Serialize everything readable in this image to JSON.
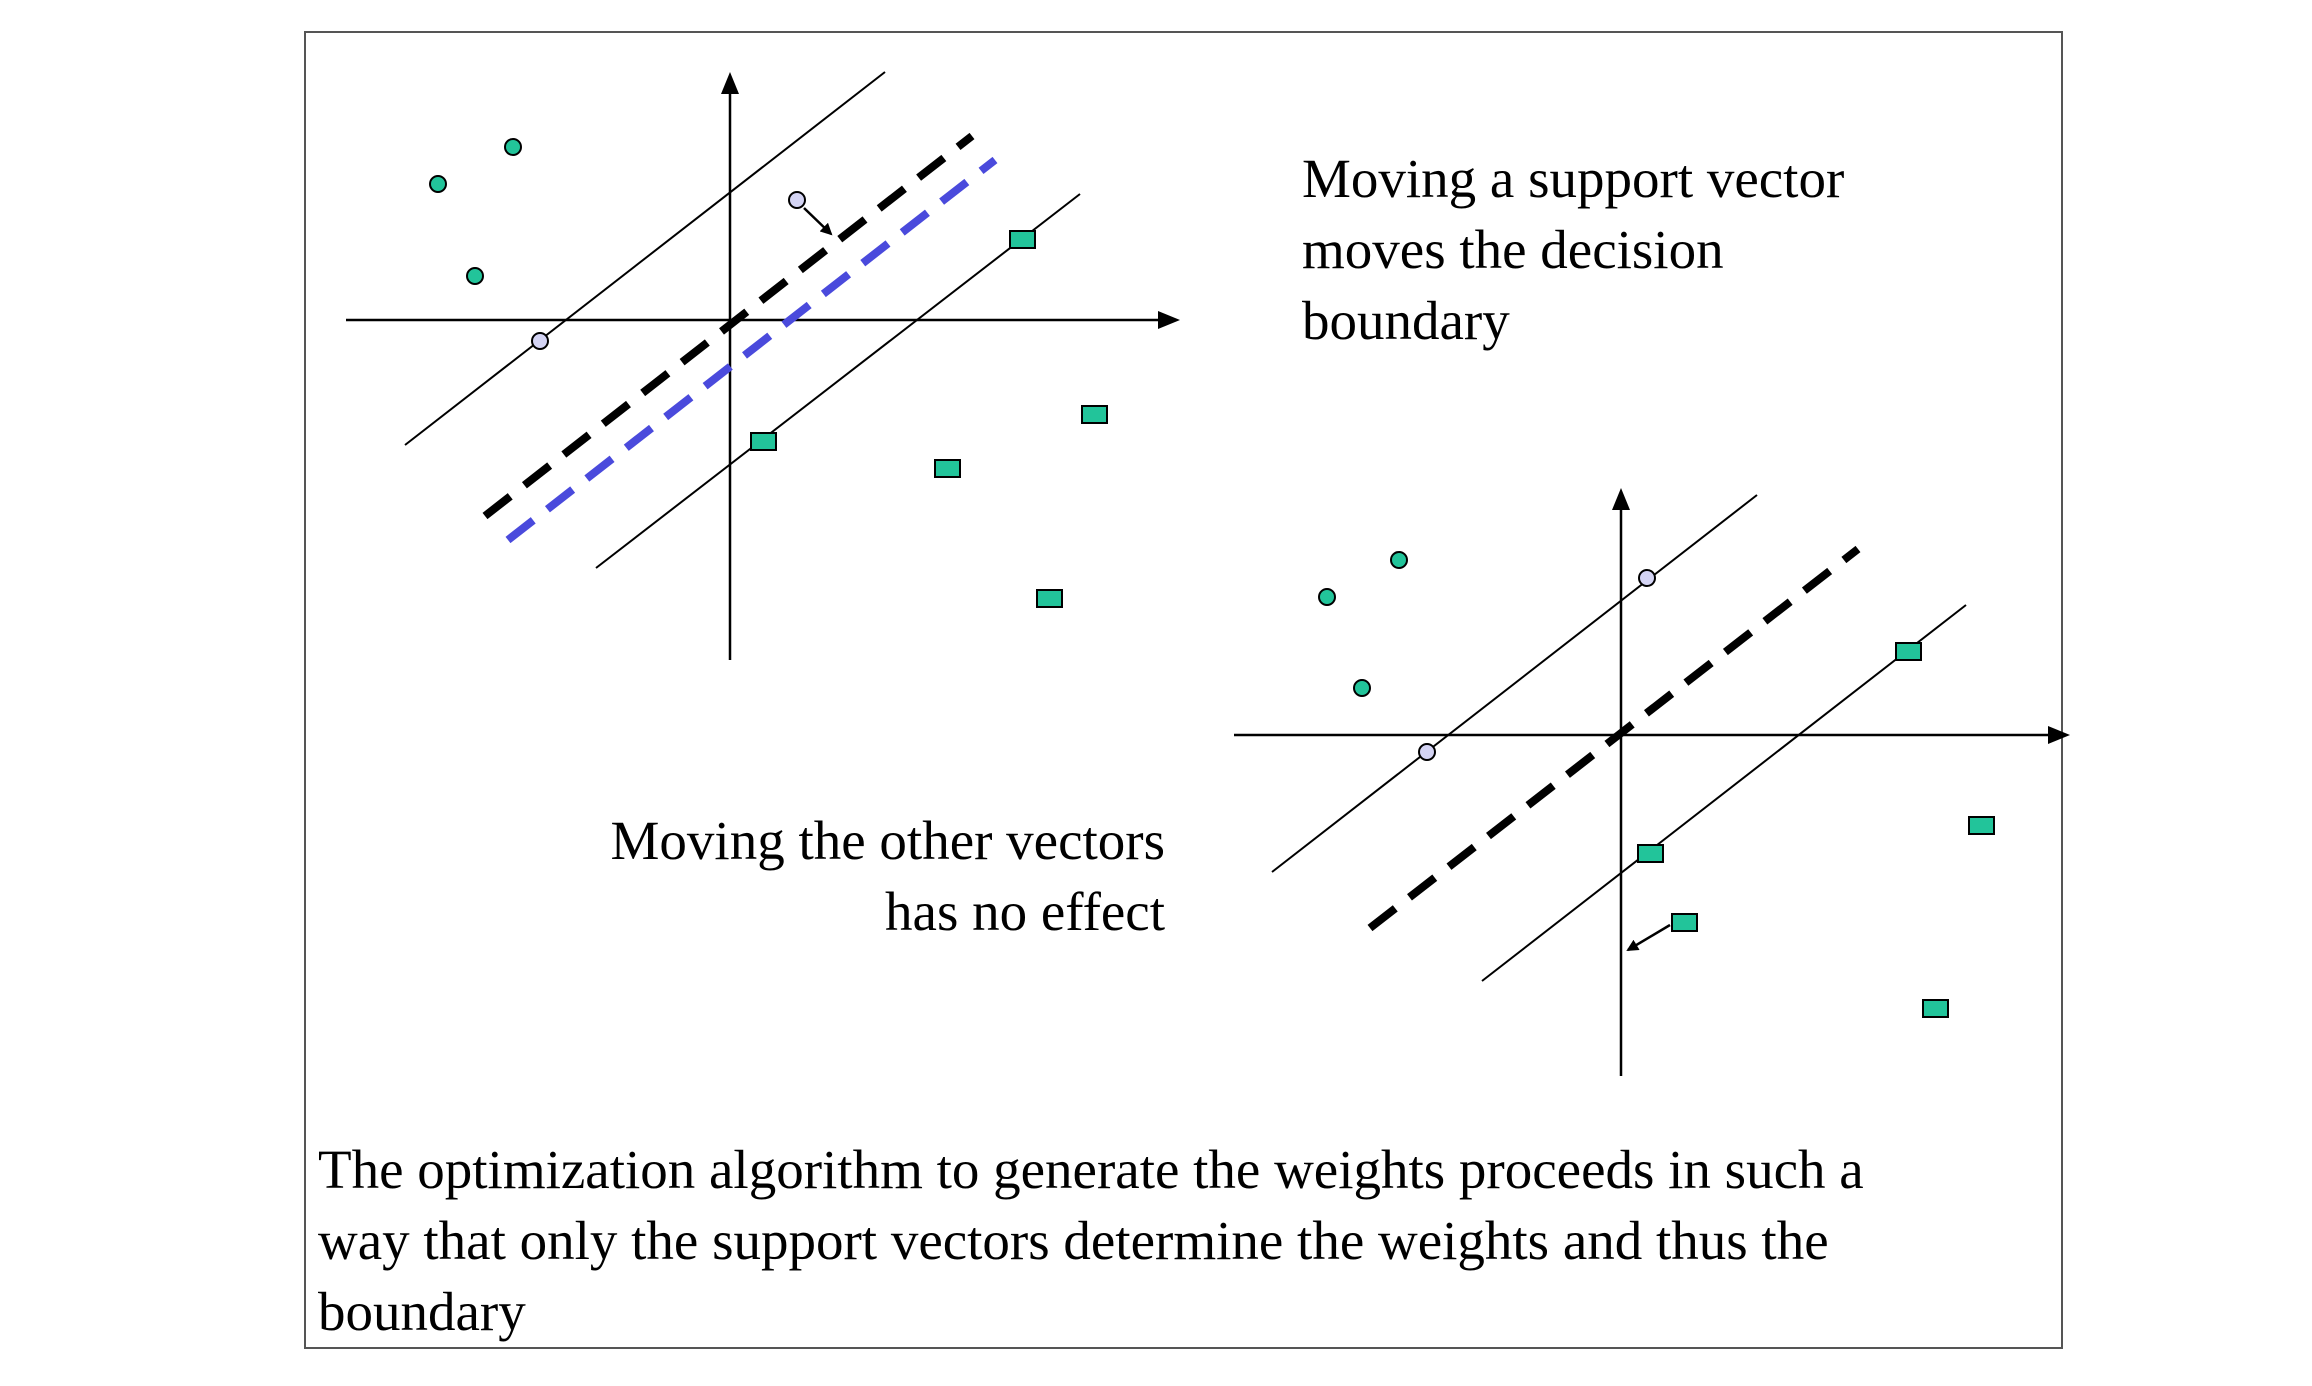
{
  "captions": {
    "top": "Moving a support vector\nmoves the decision\nboundary",
    "middle": "Moving the other vectors\nhas no effect",
    "bottom": "The optimization algorithm to generate the weights proceeds in such a\nway that only the support vectors determine the weights and thus the\nboundary"
  },
  "colors": {
    "point_fill": "#22c49a",
    "moved_point_fill": "#d4d4f4",
    "new_boundary": "#4a4adc",
    "boundary": "#000000",
    "frame": "#555555"
  }
}
